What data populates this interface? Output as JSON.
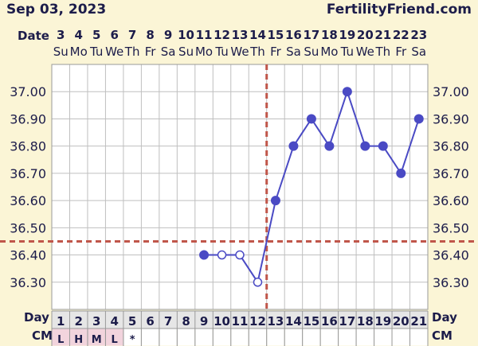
{
  "header": {
    "date_title": "Sep 03, 2023",
    "site": "FertilityFriend.com"
  },
  "rows": {
    "date_label": "Date",
    "day_label_left": "Day",
    "day_label_right": "Day",
    "cm_label_left": "CM",
    "cm_label_right": "CM"
  },
  "colors": {
    "line": "#4a4ac4",
    "coverline": "#c0564a",
    "grid": "#bfbfbf",
    "plot_bg": "#ffffff",
    "row_bg": "#e6e6e6",
    "cm_marked_bg": "#f2d4dd"
  },
  "chart_data": {
    "type": "line",
    "title": "Sep 03, 2023",
    "dates": [
      "3",
      "4",
      "5",
      "6",
      "7",
      "8",
      "9",
      "10",
      "11",
      "12",
      "13",
      "14",
      "15",
      "16",
      "17",
      "18",
      "19",
      "20",
      "21",
      "22",
      "23"
    ],
    "weekdays": [
      "Su",
      "Mo",
      "Tu",
      "We",
      "Th",
      "Fr",
      "Sa",
      "Su",
      "Mo",
      "Tu",
      "We",
      "Th",
      "Fr",
      "Sa",
      "Su",
      "Mo",
      "Tu",
      "We",
      "Th",
      "Fr",
      "Sa"
    ],
    "cycle_days": [
      "1",
      "2",
      "3",
      "4",
      "5",
      "6",
      "7",
      "8",
      "9",
      "10",
      "11",
      "12",
      "13",
      "14",
      "15",
      "16",
      "17",
      "18",
      "19",
      "20",
      "21"
    ],
    "cm": [
      "L",
      "H",
      "M",
      "L",
      "*",
      "",
      "",
      "",
      "",
      "",
      "",
      "",
      "",
      "",
      "",
      "",
      "",
      "",
      "",
      "",
      ""
    ],
    "y_ticks": [
      "36.30",
      "36.40",
      "36.50",
      "36.60",
      "36.70",
      "36.80",
      "36.90",
      "37.00"
    ],
    "ylim": [
      36.2,
      37.1
    ],
    "temperatures": [
      null,
      null,
      null,
      null,
      null,
      null,
      null,
      null,
      36.4,
      36.4,
      36.4,
      36.3,
      36.6,
      36.8,
      36.9,
      36.8,
      37.0,
      36.8,
      36.8,
      36.7,
      36.9
    ],
    "open_points_days": [
      10,
      11,
      12
    ],
    "coverline": 36.45,
    "ovulation_day": 12
  }
}
